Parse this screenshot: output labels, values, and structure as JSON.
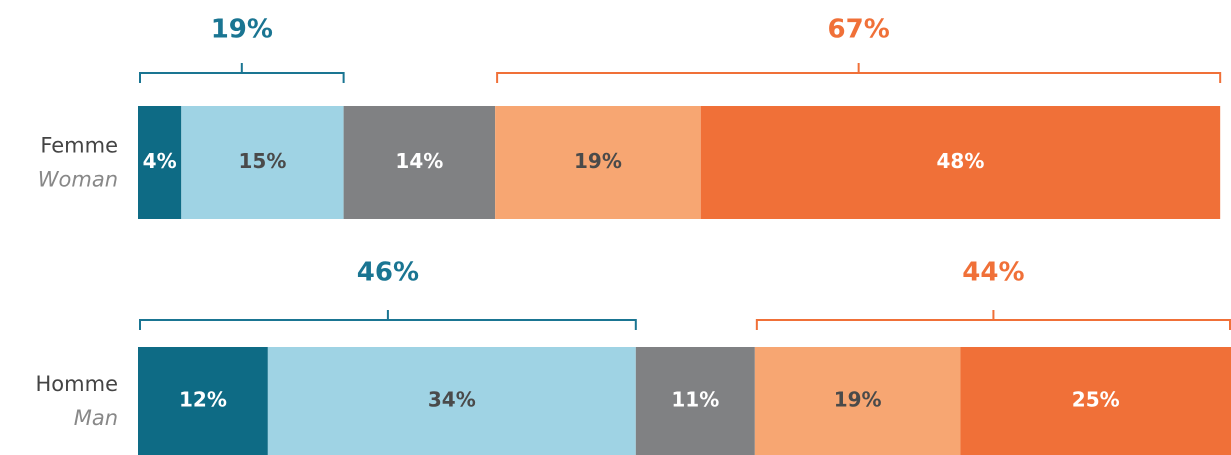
{
  "chart_data": {
    "type": "stacked_bar",
    "orientation": "horizontal",
    "categories": [
      "Femme",
      "Homme"
    ],
    "category_translations": [
      "Woman",
      "Man"
    ],
    "xlim": [
      0,
      101
    ],
    "series": [
      {
        "color": "#0e6b85",
        "values": [
          4,
          12
        ],
        "value_labels": [
          "4%",
          "12%"
        ]
      },
      {
        "color": "#9fd3e4",
        "values": [
          15,
          34
        ],
        "value_labels": [
          "15%",
          "34%"
        ]
      },
      {
        "color": "#808183",
        "values": [
          14,
          11
        ],
        "value_labels": [
          "14%",
          "11%"
        ]
      },
      {
        "color": "#f7a672",
        "values": [
          19,
          19
        ],
        "value_labels": [
          "19%",
          "19%"
        ]
      },
      {
        "color": "#f07038",
        "values": [
          48,
          25
        ],
        "value_labels": [
          "48%",
          "25%"
        ]
      }
    ],
    "left_brackets": {
      "color": "#1a7592",
      "values": [
        19,
        46
      ],
      "labels": [
        "19%",
        "46%"
      ]
    },
    "right_brackets": {
      "color": "#f07038",
      "values": [
        67,
        44
      ],
      "labels": [
        "67%",
        "44%"
      ]
    }
  }
}
